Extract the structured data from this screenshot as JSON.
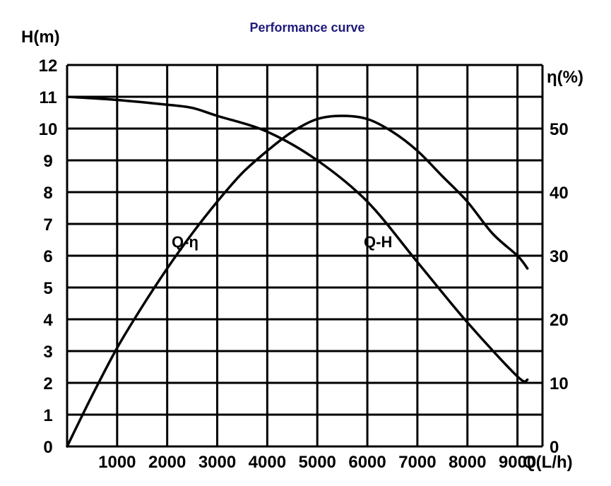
{
  "colors": {
    "title": "#1f1a7a",
    "grid": "#000000",
    "curve": "#000000",
    "text": "#000000",
    "background": "#ffffff"
  },
  "chart_data": {
    "type": "line",
    "title": "Performance curve",
    "xlabel": "Q(L/h)",
    "ylabel": "H(m)",
    "y2label": "η(%)",
    "xlim": [
      0,
      9500
    ],
    "ylim": [
      0,
      12
    ],
    "y2lim": [
      0,
      60
    ],
    "x_ticks": [
      "1000",
      "2000",
      "3000",
      "4000",
      "5000",
      "6000",
      "7000",
      "8000",
      "9000"
    ],
    "y_ticks": [
      "0",
      "1",
      "2",
      "3",
      "4",
      "5",
      "6",
      "7",
      "8",
      "9",
      "10",
      "11",
      "12"
    ],
    "y2_ticks": [
      "0",
      "10",
      "20",
      "30",
      "40",
      "50"
    ],
    "grid": true,
    "series": [
      {
        "name": "Q-H",
        "axis": "left",
        "x": [
          0,
          1000,
          2000,
          2500,
          3000,
          4000,
          5000,
          6000,
          7000,
          8000,
          9000,
          9200
        ],
        "values": [
          11.0,
          10.9,
          10.75,
          10.65,
          10.4,
          9.9,
          9.0,
          7.7,
          5.8,
          3.9,
          2.2,
          2.1
        ]
      },
      {
        "name": "Q-η",
        "axis": "right",
        "x": [
          0,
          500,
          1000,
          1500,
          2000,
          2500,
          3000,
          3500,
          4000,
          4500,
          5000,
          5500,
          6000,
          6500,
          7000,
          7500,
          8000,
          8500,
          9000,
          9200
        ],
        "values": [
          0,
          8,
          15.5,
          22,
          28,
          33.5,
          38.5,
          43,
          46.5,
          49.5,
          51.5,
          52,
          51.5,
          49.5,
          46.5,
          42.5,
          38.5,
          33.5,
          30,
          28
        ]
      }
    ]
  }
}
